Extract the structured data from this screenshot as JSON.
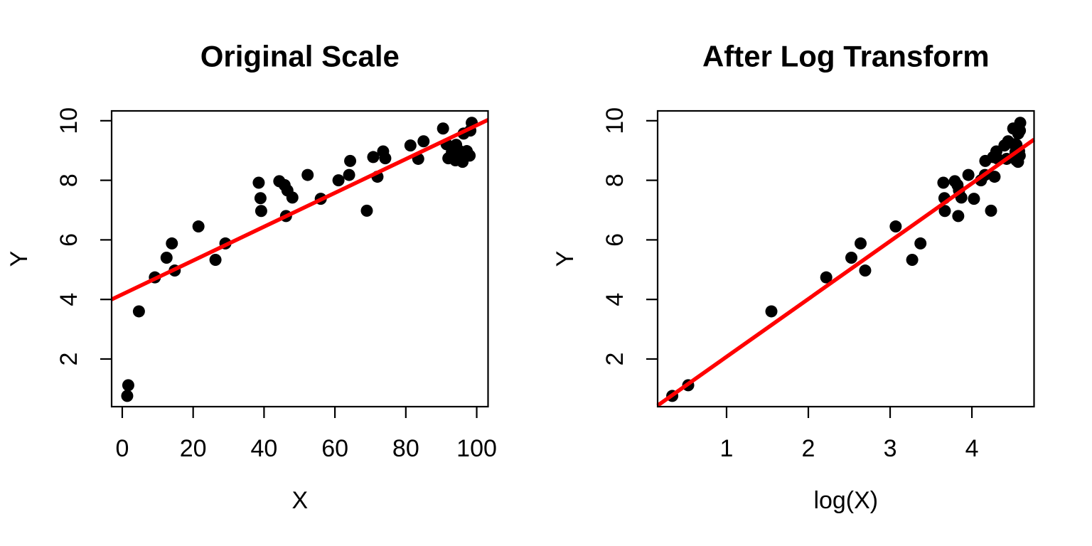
{
  "figure": {
    "background_color": "#FFFFFF",
    "point_color": "#000000",
    "fit_line_color": "#FF0000",
    "axis_color": "#000000"
  },
  "chart_data": [
    {
      "type": "scatter",
      "title": "Original Scale",
      "xlabel": "X",
      "ylabel": "Y",
      "xlim": [
        -3,
        103.2
      ],
      "ylim": [
        0.4,
        10.33
      ],
      "x_ticks": [
        0,
        20,
        40,
        60,
        80,
        100
      ],
      "y_ticks": [
        2,
        4,
        6,
        8,
        10
      ],
      "grid": false,
      "legend": null,
      "points": [
        [
          1.4,
          0.76
        ],
        [
          1.7,
          1.12
        ],
        [
          4.7,
          3.6
        ],
        [
          9.2,
          4.74
        ],
        [
          12.5,
          5.4
        ],
        [
          14.0,
          5.88
        ],
        [
          14.8,
          4.97
        ],
        [
          21.5,
          6.45
        ],
        [
          26.3,
          5.33
        ],
        [
          29.1,
          5.88
        ],
        [
          38.5,
          7.92
        ],
        [
          39.0,
          7.4
        ],
        [
          39.2,
          6.97
        ],
        [
          44.3,
          7.97
        ],
        [
          45.8,
          7.84
        ],
        [
          46.6,
          7.66
        ],
        [
          46.2,
          6.8
        ],
        [
          48.0,
          7.42
        ],
        [
          52.3,
          8.18
        ],
        [
          56.0,
          7.38
        ],
        [
          61.0,
          8.0
        ],
        [
          64.0,
          8.18
        ],
        [
          64.3,
          8.65
        ],
        [
          69.0,
          6.98
        ],
        [
          70.8,
          8.78
        ],
        [
          72.0,
          8.12
        ],
        [
          73.6,
          8.97
        ],
        [
          74.2,
          8.74
        ],
        [
          81.3,
          9.17
        ],
        [
          83.5,
          8.72
        ],
        [
          85.0,
          9.31
        ],
        [
          90.5,
          9.74
        ],
        [
          91.5,
          9.21
        ],
        [
          92.0,
          8.74
        ],
        [
          93.0,
          8.95
        ],
        [
          94.0,
          8.67
        ],
        [
          94.2,
          9.19
        ],
        [
          95.2,
          8.98
        ],
        [
          96.0,
          8.62
        ],
        [
          96.3,
          9.57
        ],
        [
          97.2,
          8.98
        ],
        [
          98.0,
          8.83
        ],
        [
          98.2,
          9.67
        ],
        [
          98.6,
          9.93
        ]
      ],
      "fit_line": {
        "x1": -3,
        "y1": 4.0,
        "x2": 103.2,
        "y2": 10.03
      }
    },
    {
      "type": "scatter",
      "title": "After Log Transform",
      "xlabel": "log(X)",
      "ylabel": "Y",
      "xlim": [
        0.157,
        4.76
      ],
      "ylim": [
        0.4,
        10.33
      ],
      "x_ticks": [
        1,
        2,
        3,
        4
      ],
      "y_ticks": [
        2,
        4,
        6,
        8,
        10
      ],
      "grid": false,
      "legend": null,
      "points": [
        [
          0.336,
          0.76
        ],
        [
          0.531,
          1.12
        ],
        [
          1.548,
          3.6
        ],
        [
          2.219,
          4.74
        ],
        [
          2.526,
          5.4
        ],
        [
          2.639,
          5.88
        ],
        [
          2.695,
          4.97
        ],
        [
          3.068,
          6.45
        ],
        [
          3.27,
          5.33
        ],
        [
          3.371,
          5.88
        ],
        [
          3.651,
          7.92
        ],
        [
          3.664,
          7.4
        ],
        [
          3.669,
          6.97
        ],
        [
          3.791,
          7.97
        ],
        [
          3.824,
          7.84
        ],
        [
          3.842,
          7.66
        ],
        [
          3.833,
          6.8
        ],
        [
          3.871,
          7.42
        ],
        [
          3.957,
          8.18
        ],
        [
          4.025,
          7.38
        ],
        [
          4.111,
          8.0
        ],
        [
          4.159,
          8.18
        ],
        [
          4.164,
          8.65
        ],
        [
          4.234,
          6.98
        ],
        [
          4.26,
          8.78
        ],
        [
          4.277,
          8.12
        ],
        [
          4.299,
          8.97
        ],
        [
          4.307,
          8.74
        ],
        [
          4.398,
          9.17
        ],
        [
          4.425,
          8.72
        ],
        [
          4.443,
          9.31
        ],
        [
          4.505,
          9.74
        ],
        [
          4.516,
          9.21
        ],
        [
          4.522,
          8.74
        ],
        [
          4.533,
          8.95
        ],
        [
          4.543,
          8.67
        ],
        [
          4.545,
          9.19
        ],
        [
          4.556,
          8.98
        ],
        [
          4.564,
          8.62
        ],
        [
          4.567,
          9.57
        ],
        [
          4.577,
          8.98
        ],
        [
          4.585,
          8.83
        ],
        [
          4.587,
          9.67
        ],
        [
          4.591,
          9.93
        ]
      ],
      "fit_line": {
        "x1": 0.157,
        "y1": 0.44,
        "x2": 4.76,
        "y2": 9.37
      }
    }
  ]
}
